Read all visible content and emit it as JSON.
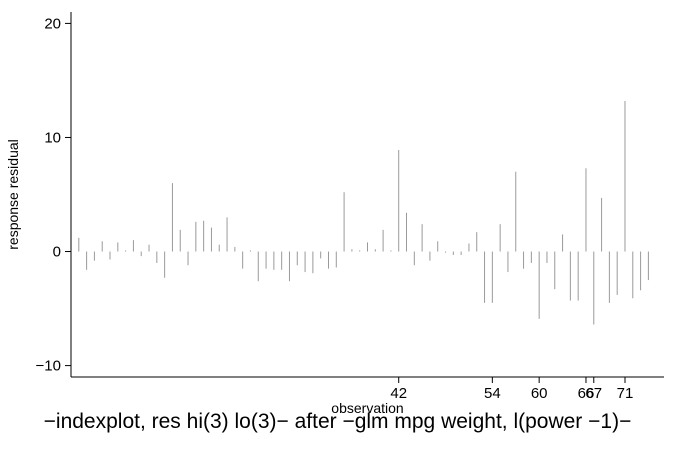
{
  "caption": "−indexplot, res hi(3) lo(3)− after −glm mpg weight, l(power −1)−",
  "chart_data": {
    "type": "spike",
    "xlabel": "observation",
    "ylabel": "response residual",
    "ylim": [
      -11,
      21
    ],
    "xlim": [
      0,
      76
    ],
    "yticks": [
      -10,
      0,
      10,
      20
    ],
    "ytick_labels": [
      "−10",
      "0",
      "10",
      "20"
    ],
    "x_labeled_ticks": [
      {
        "x": 42,
        "label": "42"
      },
      {
        "x": 54,
        "label": "54"
      },
      {
        "x": 60,
        "label": "60"
      },
      {
        "x": 66,
        "label": "66"
      },
      {
        "x": 67,
        "label": "67"
      },
      {
        "x": 71,
        "label": "71"
      }
    ],
    "grid": false,
    "line_color": "#9a9a9a",
    "x": [
      1,
      2,
      3,
      4,
      5,
      6,
      7,
      8,
      9,
      10,
      11,
      12,
      13,
      14,
      15,
      16,
      17,
      18,
      19,
      20,
      21,
      22,
      23,
      24,
      25,
      26,
      27,
      28,
      29,
      30,
      31,
      32,
      33,
      34,
      35,
      36,
      37,
      38,
      39,
      40,
      41,
      42,
      43,
      44,
      45,
      46,
      47,
      48,
      49,
      50,
      51,
      52,
      53,
      54,
      55,
      56,
      57,
      58,
      59,
      60,
      61,
      62,
      63,
      64,
      65,
      66,
      67,
      68,
      69,
      70,
      71,
      72,
      73,
      74
    ],
    "values": [
      1.2,
      -1.6,
      -0.8,
      0.9,
      -0.7,
      0.8,
      0.1,
      1.0,
      -0.4,
      0.6,
      -1.0,
      -2.3,
      6.0,
      1.9,
      -1.2,
      2.6,
      2.7,
      2.1,
      0.6,
      3.0,
      0.4,
      -1.5,
      0.1,
      -2.6,
      -1.5,
      -1.6,
      -1.6,
      -2.6,
      -1.2,
      -1.8,
      -1.9,
      -0.6,
      -1.5,
      -1.4,
      5.2,
      0.2,
      0.1,
      0.8,
      0.2,
      1.9,
      0.1,
      8.9,
      3.4,
      -1.2,
      2.4,
      -0.8,
      0.9,
      -0.1,
      -0.3,
      -0.3,
      0.7,
      1.7,
      -4.5,
      -4.5,
      2.4,
      -1.8,
      7.0,
      -1.5,
      -1.0,
      -5.9,
      -1.0,
      -3.3,
      1.5,
      -4.3,
      -4.3,
      7.3,
      -6.4,
      4.7,
      -4.5,
      -3.8,
      13.2,
      -4.1,
      -3.4,
      -2.5
    ]
  }
}
